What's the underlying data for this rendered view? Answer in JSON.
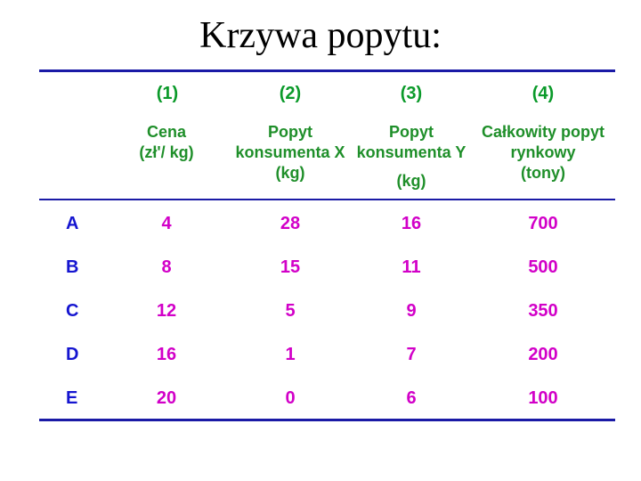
{
  "title": "Krzywa popytu:",
  "columns": [
    {
      "number": "(1)",
      "header": [
        "Cena",
        "(zł'/ kg)"
      ]
    },
    {
      "number": "(2)",
      "header": [
        "Popyt",
        "konsumenta X",
        "(kg)"
      ]
    },
    {
      "number": "(3)",
      "header": [
        "Popyt",
        "konsumenta Y",
        "(kg)"
      ]
    },
    {
      "number": "(4)",
      "header": [
        "Całkowity popyt",
        "rynkowy",
        "(tony)"
      ]
    }
  ],
  "rows": [
    {
      "label": "A",
      "values": [
        "4",
        "28",
        "16",
        "700"
      ]
    },
    {
      "label": "B",
      "values": [
        "8",
        "15",
        "11",
        "500"
      ]
    },
    {
      "label": "C",
      "values": [
        "12",
        "5",
        "9",
        "350"
      ]
    },
    {
      "label": "D",
      "values": [
        "16",
        "1",
        "7",
        "200"
      ]
    },
    {
      "label": "E",
      "values": [
        "20",
        "0",
        "6",
        "100"
      ]
    }
  ],
  "colors": {
    "rule": "#1a1aa6",
    "header_number": "#0b9a2a",
    "header_text": "#1f8f2a",
    "row_label": "#1515d0",
    "value": "#d200c8"
  }
}
